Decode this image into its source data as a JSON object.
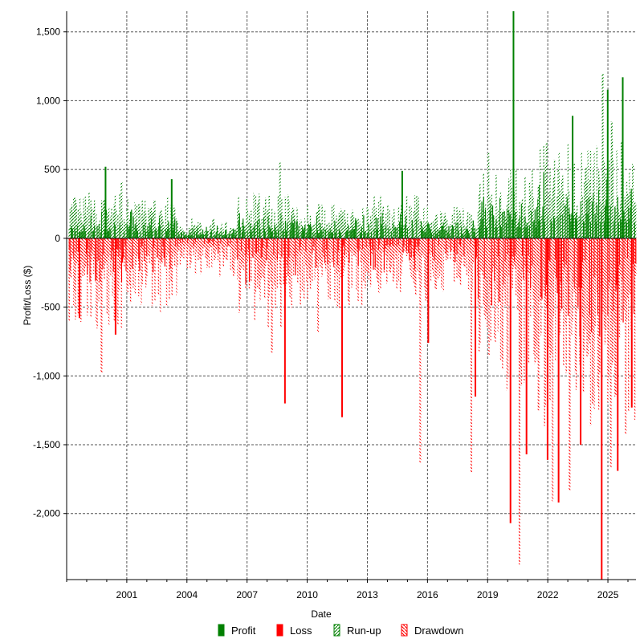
{
  "chart_data": {
    "type": "bar",
    "xlabel": "Date",
    "ylabel": "Profit/Loss ($)",
    "xlim": [
      1998.0,
      2026.4
    ],
    "ylim": [
      -2480,
      1650
    ],
    "grid": true,
    "x_ticks": [
      2001,
      2004,
      2007,
      2010,
      2013,
      2016,
      2019,
      2022,
      2025
    ],
    "y_ticks": [
      1500,
      1000,
      500,
      0,
      -500,
      -1000,
      -1500,
      -2000
    ],
    "y_tick_labels": [
      "1,500",
      "1,000",
      "500",
      "0",
      "-500",
      "-1,000",
      "-1,500",
      "-2,000"
    ],
    "legend_position": "bottom",
    "series": [
      {
        "name": "Profit",
        "color": "#008000",
        "style": "solid"
      },
      {
        "name": "Loss",
        "color": "#ff0000",
        "style": "solid"
      },
      {
        "name": "Run-up",
        "color": "#008000",
        "style": "hatched"
      },
      {
        "name": "Drawdown",
        "color": "#ff0000",
        "style": "hatched"
      }
    ],
    "bar_segments": [
      {
        "x": [
          1998.1,
          2000.8
        ],
        "profit": 150,
        "loss": -240,
        "runup": 290,
        "drawdown": -600
      },
      {
        "x": [
          2000.8,
          2003.5
        ],
        "profit": 160,
        "loss": -180,
        "runup": 260,
        "drawdown": -500
      },
      {
        "x": [
          2003.5,
          2006.5
        ],
        "profit": 70,
        "loss": -90,
        "runup": 130,
        "drawdown": -250
      },
      {
        "x": [
          2006.5,
          2009.5
        ],
        "profit": 160,
        "loss": -230,
        "runup": 300,
        "drawdown": -600
      },
      {
        "x": [
          2009.5,
          2013.0
        ],
        "profit": 120,
        "loss": -170,
        "runup": 220,
        "drawdown": -450
      },
      {
        "x": [
          2013.0,
          2016.0
        ],
        "profit": 140,
        "loss": -160,
        "runup": 280,
        "drawdown": -420
      },
      {
        "x": [
          2016.0,
          2018.5
        ],
        "profit": 110,
        "loss": -140,
        "runup": 200,
        "drawdown": -360
      },
      {
        "x": [
          2018.5,
          2021.5
        ],
        "profit": 260,
        "loss": -380,
        "runup": 450,
        "drawdown": -1000
      },
      {
        "x": [
          2021.5,
          2026.4
        ],
        "profit": 380,
        "loss": -480,
        "runup": 620,
        "drawdown": -1200
      }
    ],
    "spikes": [
      {
        "x": 1999.9,
        "value": 520
      },
      {
        "x": 2000.7,
        "value": 410
      },
      {
        "x": 2003.2,
        "value": 430
      },
      {
        "x": 2008.6,
        "value": 550
      },
      {
        "x": 2014.7,
        "value": 490
      },
      {
        "x": 2019.0,
        "value": 620
      },
      {
        "x": 2020.25,
        "value": 1650
      },
      {
        "x": 2021.9,
        "value": 700
      },
      {
        "x": 2023.2,
        "value": 890
      },
      {
        "x": 2024.7,
        "value": 1200
      },
      {
        "x": 2024.95,
        "value": 1080
      },
      {
        "x": 2025.15,
        "value": 850
      },
      {
        "x": 2025.7,
        "value": 1170
      },
      {
        "x": 2026.2,
        "value": 540
      },
      {
        "x": 1998.6,
        "value": -580
      },
      {
        "x": 1999.7,
        "value": -980
      },
      {
        "x": 2000.4,
        "value": -700
      },
      {
        "x": 2008.2,
        "value": -830
      },
      {
        "x": 2008.85,
        "value": -1200
      },
      {
        "x": 2010.5,
        "value": -680
      },
      {
        "x": 2011.7,
        "value": -1300
      },
      {
        "x": 2015.6,
        "value": -1630
      },
      {
        "x": 2016.0,
        "value": -760
      },
      {
        "x": 2018.15,
        "value": -1700
      },
      {
        "x": 2018.35,
        "value": -1150
      },
      {
        "x": 2019.7,
        "value": -880
      },
      {
        "x": 2020.1,
        "value": -2070
      },
      {
        "x": 2020.55,
        "value": -2370
      },
      {
        "x": 2020.9,
        "value": -1570
      },
      {
        "x": 2021.5,
        "value": -1250
      },
      {
        "x": 2021.95,
        "value": -1610
      },
      {
        "x": 2022.2,
        "value": -1910
      },
      {
        "x": 2022.5,
        "value": -1920
      },
      {
        "x": 2023.05,
        "value": -1830
      },
      {
        "x": 2023.6,
        "value": -1500
      },
      {
        "x": 2024.2,
        "value": -1200
      },
      {
        "x": 2024.65,
        "value": -2480
      },
      {
        "x": 2025.1,
        "value": -1670
      },
      {
        "x": 2025.45,
        "value": -1690
      },
      {
        "x": 2025.85,
        "value": -1420
      },
      {
        "x": 2026.15,
        "value": -1230
      }
    ]
  }
}
